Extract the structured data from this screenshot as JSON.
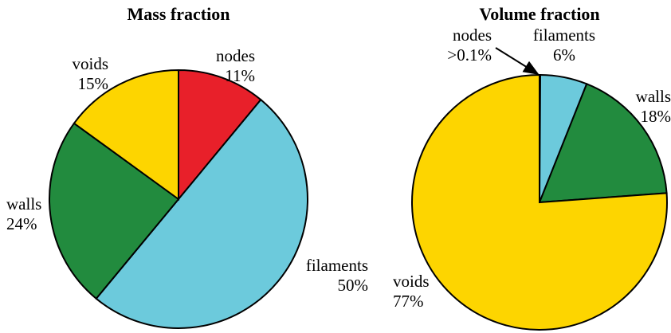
{
  "chart_data": [
    {
      "type": "pie",
      "title": "Mass fraction",
      "categories": [
        "nodes",
        "filaments",
        "walls",
        "voids"
      ],
      "values": [
        11,
        50,
        24,
        15
      ],
      "value_labels": [
        "11%",
        "50%",
        "24%",
        "15%"
      ],
      "colors": [
        "#e8202a",
        "#6ccadc",
        "#228b3e",
        "#fdd500"
      ]
    },
    {
      "type": "pie",
      "title": "Volume fraction",
      "categories": [
        "nodes",
        "filaments",
        "walls",
        "voids"
      ],
      "values": [
        0.1,
        6,
        18,
        77
      ],
      "value_labels": [
        ">0.1%",
        "6%",
        "18%",
        "77%"
      ],
      "colors": [
        "#e8202a",
        "#6ccadc",
        "#228b3e",
        "#fdd500"
      ]
    }
  ]
}
